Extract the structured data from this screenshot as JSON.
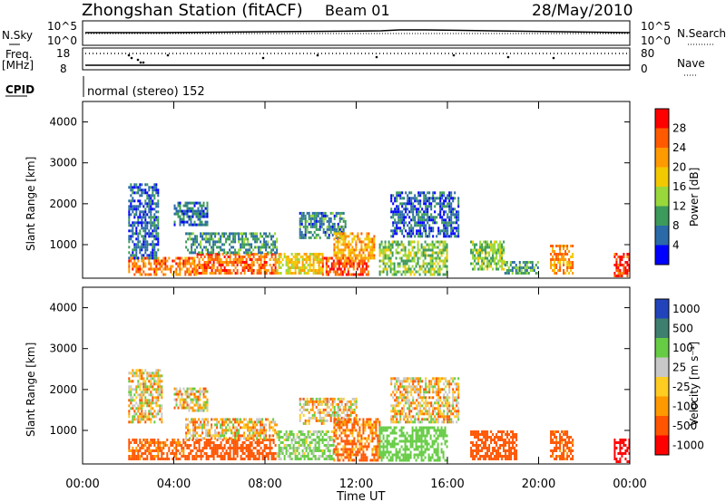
{
  "header": {
    "station": "Zhongshan Station (fitACF)",
    "beam": "Beam 01",
    "date": "28/May/2010"
  },
  "strips": {
    "nsky_label": "N.Sky",
    "nsky_ticks": [
      "10^5",
      "10^0"
    ],
    "nsearch_label": "N.Search",
    "nsearch_ticks": [
      "10^5",
      "10^0"
    ],
    "freq_label": "Freq.",
    "freq_unit": "[MHz]",
    "freq_ticks": [
      "18",
      "8"
    ],
    "nave_label": "Nave",
    "nave_ticks": [
      "80",
      "0"
    ],
    "cpid_label": "CPID",
    "cpid_text": "normal (stereo) 152"
  },
  "axes": {
    "ylabel": "Slant Range [km]",
    "xlabel": "Time UT",
    "y_ticks": [
      "4000",
      "3000",
      "2000",
      "1000"
    ],
    "x_ticks": [
      "00:00",
      "04:00",
      "08:00",
      "12:00",
      "16:00",
      "20:00",
      "00:00"
    ]
  },
  "power_scale": {
    "label": "Power [dB]",
    "ticks": [
      "28",
      "24",
      "20",
      "16",
      "12",
      "8",
      "4"
    ],
    "colors": [
      "#ff0000",
      "#ff5a00",
      "#ff9a00",
      "#f2c800",
      "#99d83a",
      "#3c9a5a",
      "#2a6aa8",
      "#0000ff"
    ]
  },
  "velocity_scale": {
    "label": "Velocity [m s⁻¹]",
    "ticks": [
      "1000",
      "500",
      "100",
      "25",
      "-25",
      "-100",
      "-500",
      "-1000"
    ],
    "colors": [
      "#2244bb",
      "#3f7f6f",
      "#66cc44",
      "#c8c8c8",
      "#ffcc22",
      "#ff9900",
      "#ff5500",
      "#ff0000"
    ]
  },
  "chart_data": [
    {
      "type": "heatmap",
      "name": "power",
      "xlabel": "Time UT",
      "ylabel": "Slant Range [km]",
      "x_range_hours": [
        0,
        24
      ],
      "y_range_km": [
        180,
        4500
      ],
      "color_label": "Power [dB]",
      "color_range": [
        0,
        30
      ],
      "regions": [
        {
          "t": [
            2.0,
            5.0
          ],
          "r": [
            300,
            700
          ],
          "level": 24
        },
        {
          "t": [
            2.0,
            3.3
          ],
          "r": [
            700,
            2500
          ],
          "level": 6
        },
        {
          "t": [
            4.0,
            5.5
          ],
          "r": [
            1500,
            2050
          ],
          "level": 7
        },
        {
          "t": [
            5.0,
            8.5
          ],
          "r": [
            300,
            800
          ],
          "level": 25
        },
        {
          "t": [
            4.5,
            8.5
          ],
          "r": [
            800,
            1300
          ],
          "level": 9
        },
        {
          "t": [
            8.5,
            10.5
          ],
          "r": [
            300,
            800
          ],
          "level": 18
        },
        {
          "t": [
            9.5,
            11.5
          ],
          "r": [
            1200,
            1800
          ],
          "level": 8
        },
        {
          "t": [
            10.5,
            12.5
          ],
          "r": [
            300,
            700
          ],
          "level": 27
        },
        {
          "t": [
            11.0,
            12.8
          ],
          "r": [
            700,
            1300
          ],
          "level": 21
        },
        {
          "t": [
            13.5,
            16.5
          ],
          "r": [
            1200,
            2300
          ],
          "level": 6
        },
        {
          "t": [
            13.0,
            16.0
          ],
          "r": [
            300,
            1100
          ],
          "level": 13
        },
        {
          "t": [
            17.0,
            18.5
          ],
          "r": [
            400,
            1100
          ],
          "level": 13
        },
        {
          "t": [
            18.5,
            20.0
          ],
          "r": [
            300,
            600
          ],
          "level": 10
        },
        {
          "t": [
            20.5,
            21.5
          ],
          "r": [
            300,
            1000
          ],
          "level": 22
        },
        {
          "t": [
            23.3,
            24.0
          ],
          "r": [
            250,
            800
          ],
          "level": 28
        }
      ]
    },
    {
      "type": "heatmap",
      "name": "velocity",
      "xlabel": "Time UT",
      "ylabel": "Slant Range [km]",
      "x_range_hours": [
        0,
        24
      ],
      "y_range_km": [
        180,
        4500
      ],
      "color_label": "Velocity [m s⁻¹]",
      "color_range": [
        -1000,
        1000
      ],
      "regions": [
        {
          "t": [
            2.0,
            5.0
          ],
          "r": [
            300,
            800
          ],
          "level": -200
        },
        {
          "t": [
            2.0,
            3.5
          ],
          "r": [
            1200,
            2500
          ],
          "level": 0
        },
        {
          "t": [
            4.0,
            5.5
          ],
          "r": [
            1500,
            2050
          ],
          "level": 0
        },
        {
          "t": [
            5.0,
            8.5
          ],
          "r": [
            300,
            800
          ],
          "level": -300
        },
        {
          "t": [
            4.5,
            8.5
          ],
          "r": [
            800,
            1300
          ],
          "level": 0
        },
        {
          "t": [
            8.5,
            11.0
          ],
          "r": [
            300,
            1000
          ],
          "level": 150
        },
        {
          "t": [
            9.5,
            12.0
          ],
          "r": [
            1200,
            1800
          ],
          "level": 0
        },
        {
          "t": [
            11.0,
            13.0
          ],
          "r": [
            300,
            1300
          ],
          "level": -150
        },
        {
          "t": [
            13.5,
            16.5
          ],
          "r": [
            1200,
            2300
          ],
          "level": 0
        },
        {
          "t": [
            13.0,
            16.0
          ],
          "r": [
            300,
            1100
          ],
          "level": 300
        },
        {
          "t": [
            17.0,
            19.0
          ],
          "r": [
            300,
            1000
          ],
          "level": -300
        },
        {
          "t": [
            20.5,
            21.5
          ],
          "r": [
            300,
            1000
          ],
          "level": -200
        },
        {
          "t": [
            23.3,
            24.0
          ],
          "r": [
            250,
            800
          ],
          "level": -700
        }
      ]
    }
  ]
}
